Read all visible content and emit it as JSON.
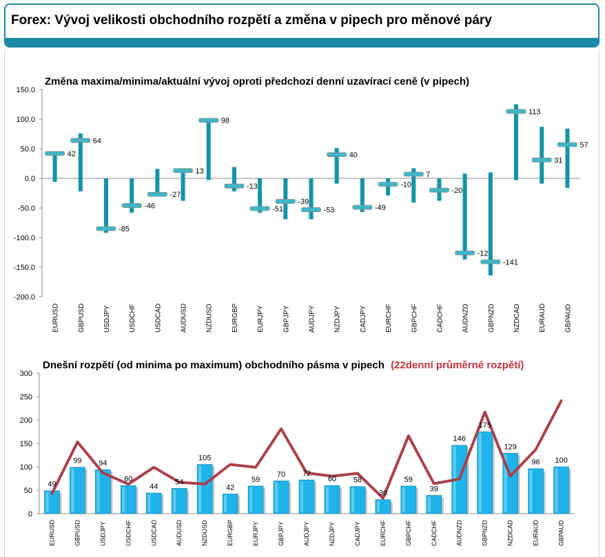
{
  "page": {
    "title": "Forex: Vývoj velikosti obchodního rozpětí a změna v pipech pro měnové páry"
  },
  "chart_data": [
    {
      "type": "bar",
      "title": "Změna maxima/minima/aktuální vývoj oproti předchozí denní uzavírací ceně (v pipech)",
      "categories": [
        "EURUSD",
        "GBPUSD",
        "USDJPY",
        "USDCHF",
        "USDCAD",
        "AUDUSD",
        "NZDUSD",
        "EURGBP",
        "EURJPY",
        "GBPJPY",
        "AUDJPY",
        "NZDJPY",
        "CADJPY",
        "EURCHF",
        "GBPCHF",
        "CADCHF",
        "AUDNZD",
        "GBPNZD",
        "NZDCAD",
        "EURAUD",
        "GBPAUD"
      ],
      "high": [
        42,
        76,
        0,
        0,
        16,
        13,
        101,
        19,
        0,
        0,
        0,
        51,
        0,
        0,
        17,
        0,
        8,
        10,
        125,
        87,
        84
      ],
      "low": [
        -6,
        -22,
        -92,
        -58,
        -28,
        -38,
        -3,
        -22,
        -58,
        -69,
        -69,
        -9,
        -57,
        -29,
        -41,
        -38,
        -137,
        -164,
        -3,
        -9,
        -16
      ],
      "current": [
        42,
        64,
        -85,
        -46,
        -27,
        13,
        98,
        -13,
        -51,
        -39,
        -53,
        40,
        -49,
        -10,
        7,
        -20,
        -126,
        -141,
        113,
        31,
        57
      ],
      "ylim": [
        -200,
        150
      ],
      "yticks": [
        "150.0",
        "100.0",
        "50.0",
        "0.0",
        "-50.0",
        "-100.0",
        "-150.0",
        "-200.0"
      ],
      "bar_color": "#1393a7",
      "marker_color": "#3fb7c8"
    },
    {
      "type": "bar",
      "title": "Dnešní rozpětí (od minima po maximum) obchodního pásma v pipech",
      "title_extra": "(22denní průměrné rozpětí)",
      "title_extra_color": "#c0323c",
      "categories": [
        "EURUSD",
        "GBPUSD",
        "USDJPY",
        "USDCHF",
        "USDCAD",
        "AUDUSD",
        "NZDUSD",
        "EURGBP",
        "EURJPY",
        "GBPJPY",
        "AUDJPY",
        "NZDJPY",
        "CADJPY",
        "EURCHF",
        "GBPCHF",
        "CADCHF",
        "AUDNZD",
        "GBPNZD",
        "NZDCAD",
        "EURAUD",
        "GBPAUD"
      ],
      "values": [
        49,
        99,
        94,
        60,
        44,
        54,
        105,
        42,
        59,
        70,
        72,
        60,
        58,
        30,
        59,
        39,
        146,
        175,
        129,
        96,
        100
      ],
      "line": [
        43,
        153,
        87,
        63,
        99,
        67,
        63,
        105,
        99,
        181,
        87,
        80,
        86,
        33,
        166,
        64,
        74,
        217,
        80,
        137,
        241
      ],
      "ylim": [
        0,
        300
      ],
      "yticks": [
        "0",
        "50",
        "100",
        "150",
        "200",
        "250",
        "300"
      ],
      "bar_color": "#1fb3ea",
      "line_color": "#a8404a"
    }
  ]
}
